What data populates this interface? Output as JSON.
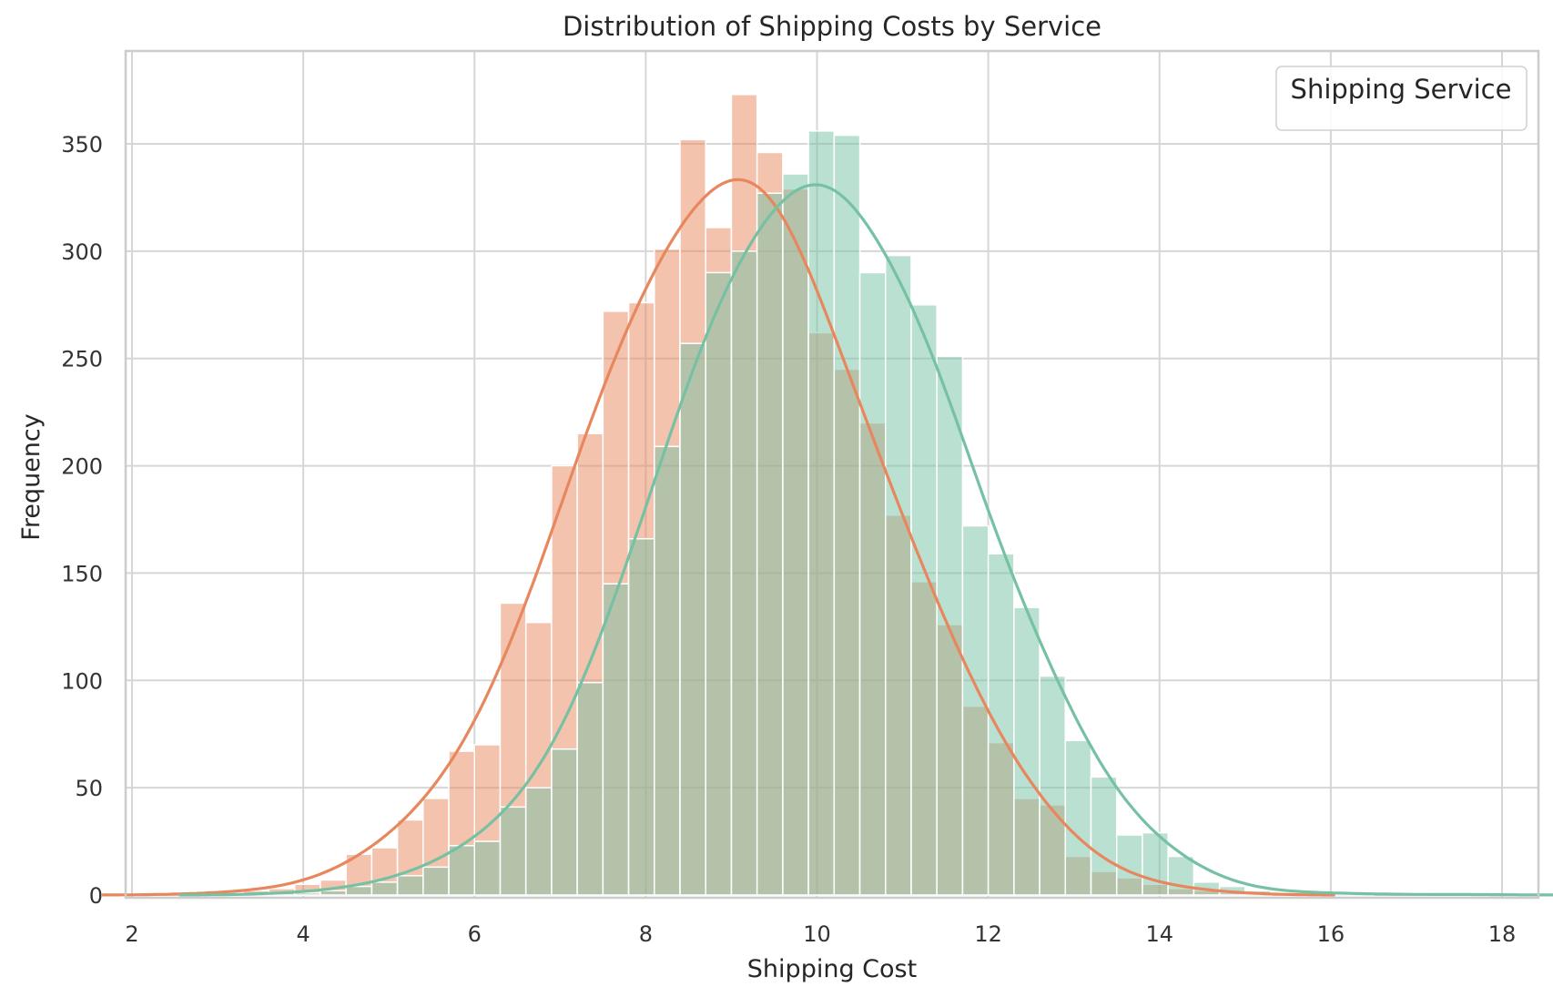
{
  "chart_data": {
    "type": "histogram",
    "title": "Distribution of Shipping Costs by Service",
    "xlabel": "Shipping Cost",
    "ylabel": "Frequency",
    "xlim": [
      2,
      18
    ],
    "ylim": [
      0,
      400
    ],
    "xticks": [
      "2",
      "4",
      "6",
      "8",
      "10",
      "12",
      "14",
      "16",
      "18"
    ],
    "yticks": [
      "0",
      "50",
      "100",
      "150",
      "200",
      "250",
      "300",
      "350"
    ],
    "grid": true,
    "legend": {
      "title": "Shipping Service",
      "placement": "top-right",
      "entries": []
    },
    "bin_width": 0.3,
    "series": [
      {
        "color": "#e8875e",
        "bin_starts": [
          2.7,
          3.0,
          3.3,
          3.6,
          3.9,
          4.2,
          4.5,
          4.8,
          5.1,
          5.4,
          5.7,
          6.0,
          6.3,
          6.6,
          6.9,
          7.2,
          7.5,
          7.8,
          8.1,
          8.4,
          8.7,
          9.0,
          9.3,
          9.6,
          9.9,
          10.2,
          10.5,
          10.8,
          11.1,
          11.4,
          11.7,
          12.0,
          12.3,
          12.6,
          12.9,
          13.2,
          13.5,
          13.8,
          14.1,
          14.4,
          14.7
        ],
        "counts": [
          1,
          1,
          2,
          3,
          5,
          7,
          19,
          22,
          35,
          45,
          67,
          70,
          136,
          127,
          200,
          215,
          272,
          276,
          301,
          352,
          311,
          373,
          346,
          329,
          262,
          245,
          220,
          177,
          146,
          126,
          88,
          71,
          45,
          42,
          18,
          11,
          8,
          5,
          3,
          2,
          1
        ],
        "kde_peak": [
          9.1,
          343
        ]
      },
      {
        "color": "#76c1a4",
        "bin_starts": [
          3.6,
          3.9,
          4.2,
          4.5,
          4.8,
          5.1,
          5.4,
          5.7,
          6.0,
          6.3,
          6.6,
          6.9,
          7.2,
          7.5,
          7.8,
          8.1,
          8.4,
          8.7,
          9.0,
          9.3,
          9.6,
          9.9,
          10.2,
          10.5,
          10.8,
          11.1,
          11.4,
          11.7,
          12.0,
          12.3,
          12.6,
          12.9,
          13.2,
          13.5,
          13.8,
          14.1,
          14.4,
          14.7,
          15.0,
          15.3,
          15.6,
          15.9,
          16.2,
          17.4
        ],
        "counts": [
          1,
          1,
          2,
          4,
          6,
          9,
          13,
          23,
          25,
          41,
          50,
          68,
          99,
          145,
          166,
          209,
          257,
          290,
          300,
          327,
          336,
          356,
          354,
          290,
          298,
          275,
          251,
          172,
          159,
          134,
          102,
          72,
          55,
          28,
          29,
          18,
          6,
          4,
          2,
          1,
          1,
          1,
          1,
          1
        ],
        "kde_peak": [
          10.05,
          347
        ]
      }
    ]
  }
}
